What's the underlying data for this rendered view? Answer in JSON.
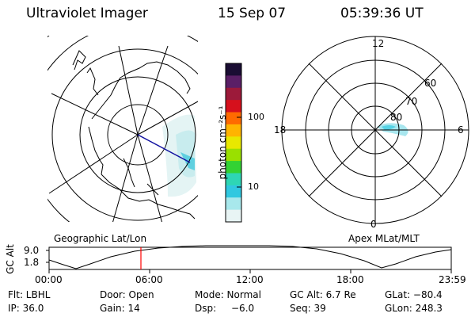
{
  "header": {
    "title": "Ultraviolet Imager",
    "date": "15 Sep 07",
    "time": "05:39:36 UT"
  },
  "geo_panel": {
    "label": "Geographic Lat/Lon"
  },
  "polar_panel": {
    "label": "Apex MLat/MLT",
    "mlt_labels": [
      "12",
      "18",
      "6",
      "0"
    ],
    "lat_labels": [
      "60",
      "70",
      "80"
    ]
  },
  "colorbar": {
    "unit_label": "photon cm⁻²s⁻¹",
    "ticks": [
      "100",
      "10"
    ],
    "colors": [
      "#1a0d33",
      "#5a1f66",
      "#9c1a3a",
      "#d6101c",
      "#ff6a00",
      "#ffb400",
      "#e8e800",
      "#9ae000",
      "#33d233",
      "#2ed6b4",
      "#30c8e0",
      "#a8e8ec",
      "#e8f4f4"
    ]
  },
  "altitude_plot": {
    "ylabel": "GC Alt",
    "yticks": [
      "9.0",
      "1.8"
    ],
    "xticks": [
      "00:00",
      "06:00",
      "12:00",
      "18:00",
      "23:59"
    ],
    "marker_time": "05:39:36",
    "marker_color": "#ff0000"
  },
  "info": {
    "row1": {
      "filter": "Flt: LBHL",
      "door": "Door: Open",
      "mode": "Mode: Normal",
      "gc_alt": "GC Alt: 6.7 Re",
      "glat": "GLat: −80.4"
    },
    "row2": {
      "ip": "IP: 36.0",
      "gain": "Gain: 14",
      "dsp_label": "Dsp:",
      "dsp_value": "−6.0",
      "seq": "Seq: 39",
      "glon": "GLon: 248.3"
    }
  }
}
